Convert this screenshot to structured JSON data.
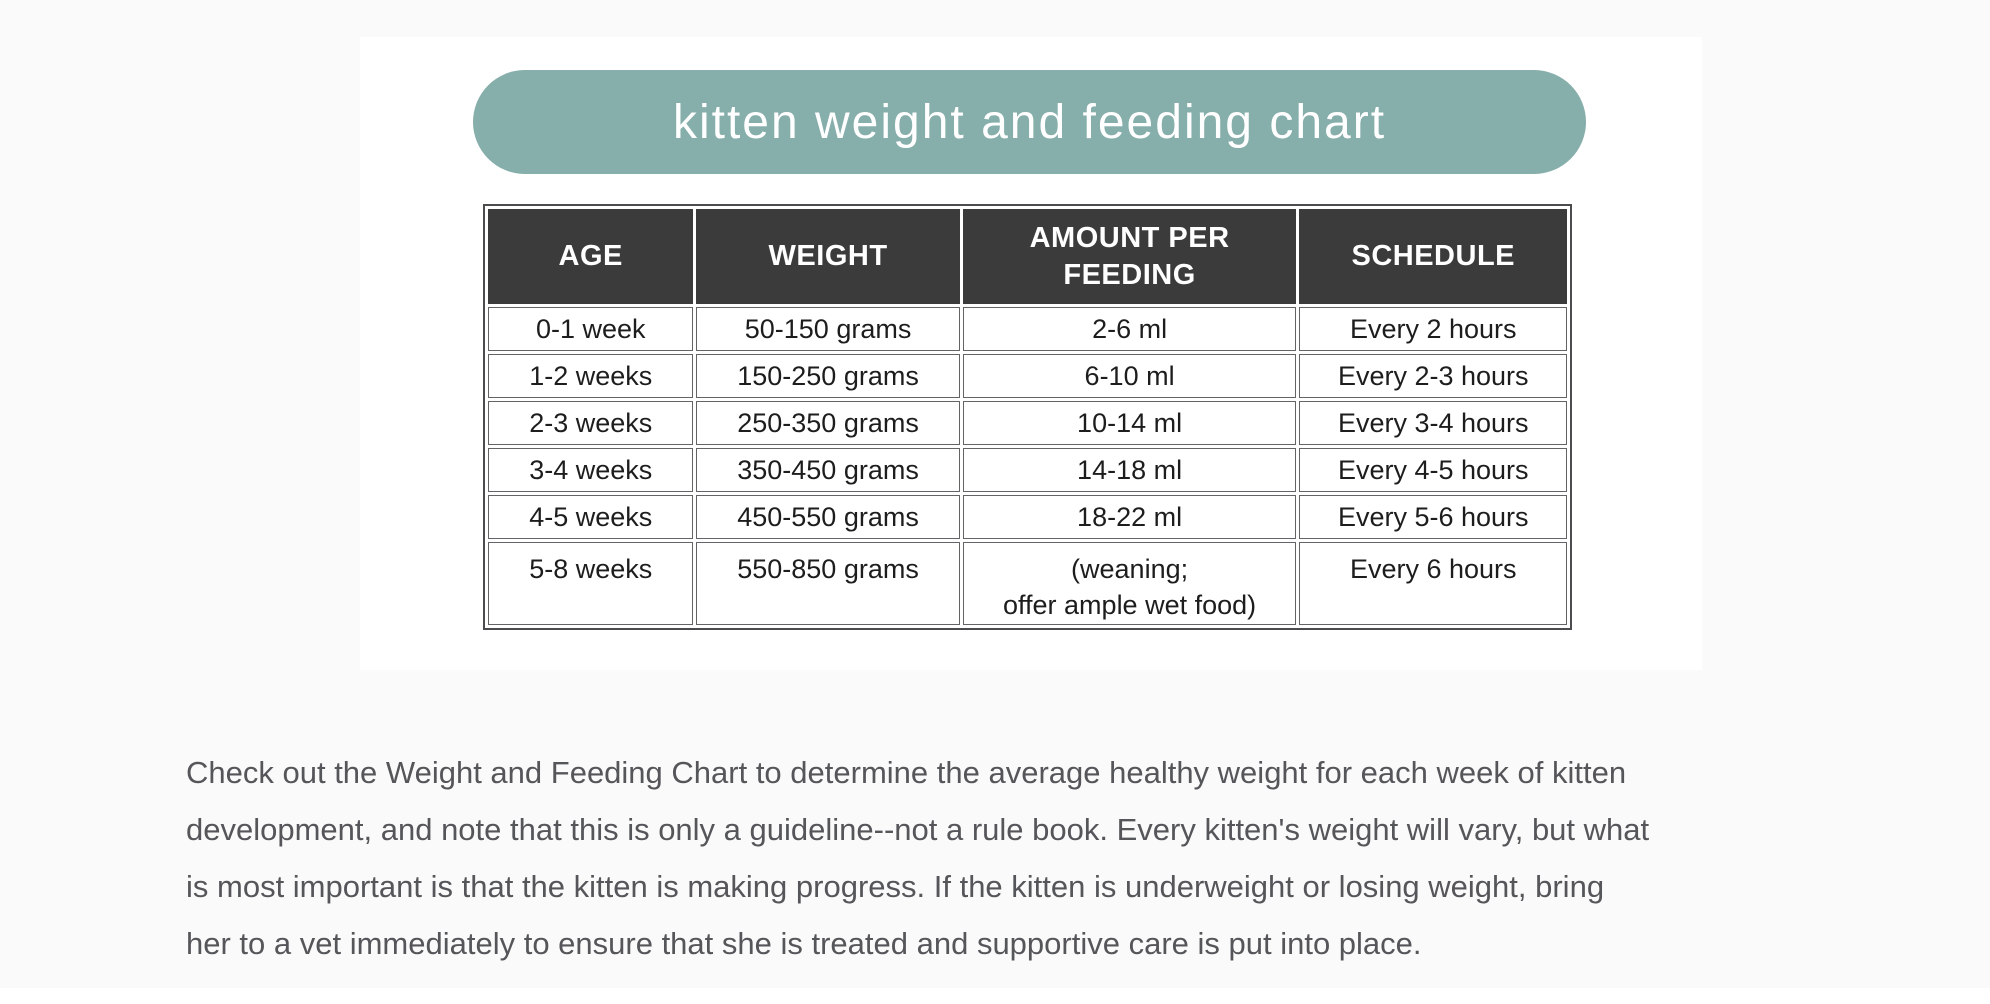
{
  "colors": {
    "page_bg": "#fafafa",
    "image_bg": "#ffffff",
    "banner_teal": "#86aeab",
    "header_bg": "#3b3b3b",
    "header_text": "#ffffff",
    "cell_text": "#1d1d1d",
    "border_dark": "#4c4c4e",
    "border_inner": "#636466",
    "paragraph_text": "#55565a"
  },
  "chart": {
    "title": "kitten weight and feeding chart"
  },
  "table": {
    "headers": [
      "AGE",
      "WEIGHT",
      "AMOUNT PER\nFEEDING",
      "SCHEDULE"
    ],
    "rows": [
      [
        "0-1 week",
        "50-150 grams",
        "2-6 ml",
        "Every 2 hours"
      ],
      [
        "1-2 weeks",
        "150-250 grams",
        "6-10 ml",
        "Every 2-3 hours"
      ],
      [
        "2-3 weeks",
        "250-350 grams",
        "10-14 ml",
        "Every 3-4 hours"
      ],
      [
        "3-4 weeks",
        "350-450 grams",
        "14-18 ml",
        "Every 4-5 hours"
      ],
      [
        "4-5 weeks",
        "450-550 grams",
        "18-22 ml",
        "Every 5-6 hours"
      ],
      [
        "5-8 weeks",
        "550-850 grams",
        "(weaning;\noffer ample wet food)",
        "Every 6 hours"
      ]
    ]
  },
  "paragraph": {
    "text": "Check out the Weight and Feeding Chart to determine the average healthy weight for each week of kitten\ndevelopment, and note that this is only a guideline--not a rule book. Every kitten's weight will vary, but what\nis most important is that the kitten is making progress. If the kitten is underweight or losing weight, bring\nher to a vet immediately to ensure that she is treated and supportive care is put into place."
  }
}
